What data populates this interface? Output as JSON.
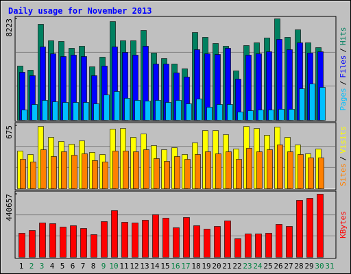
{
  "title": "Daily usage for November 2013",
  "chart_data": [
    {
      "type": "bar",
      "ylim": [
        0,
        8223
      ],
      "yticks": [
        8223
      ],
      "legend_separator": "/",
      "series": [
        {
          "name": "Hits",
          "color": "#008060",
          "values": [
            4391,
            4056,
            7778,
            6445,
            6390,
            5834,
            6000,
            4334,
            5111,
            8000,
            6445,
            6445,
            7278,
            5445,
            5000,
            4556,
            4167,
            7112,
            6723,
            6223,
            6000,
            4000,
            6056,
            6278,
            6667,
            8223,
            6723,
            7334,
            6278,
            5889,
            null
          ]
        },
        {
          "name": "Files",
          "color": "#0000ff",
          "values": [
            3890,
            3612,
            5945,
            5390,
            5167,
            5278,
            5167,
            3612,
            4390,
            5945,
            5500,
            5278,
            6000,
            4556,
            4556,
            3834,
            3500,
            5723,
            5390,
            5334,
            5834,
            3334,
            5278,
            5390,
            5556,
            6556,
            5723,
            6278,
            5445,
            5556,
            null
          ]
        },
        {
          "name": "Pages",
          "color": "#00c0ff",
          "values": [
            834,
            1278,
            1612,
            1500,
            1445,
            1445,
            1445,
            1334,
            2056,
            2334,
            1778,
            1612,
            1556,
            1612,
            1445,
            1612,
            1334,
            1723,
            1056,
            1278,
            1278,
            667,
            778,
            834,
            834,
            890,
            890,
            2557,
            2945,
            2668,
            null
          ]
        }
      ]
    },
    {
      "type": "bar",
      "ylim": [
        0,
        675
      ],
      "yticks": [
        675
      ],
      "legend_separator": "/",
      "series": [
        {
          "name": "Visits",
          "color": "#ffff00",
          "values": [
            403,
            367,
            667,
            550,
            506,
            477,
            513,
            389,
            367,
            638,
            645,
            550,
            587,
            462,
            418,
            440,
            367,
            491,
            623,
            623,
            579,
            425,
            667,
            645,
            572,
            660,
            550,
            469,
            374,
            425,
            null
          ]
        },
        {
          "name": "Sites",
          "color": "#ff8000",
          "values": [
            315,
            286,
            418,
            345,
            396,
            359,
            374,
            301,
            286,
            403,
            403,
            396,
            418,
            323,
            293,
            345,
            315,
            367,
            396,
            374,
            396,
            315,
            433,
            396,
            418,
            469,
            396,
            367,
            330,
            330,
            null
          ]
        }
      ]
    },
    {
      "type": "bar",
      "ylim": [
        0,
        440657
      ],
      "yticks": [
        440657
      ],
      "categories": [
        "1",
        "2",
        "3",
        "4",
        "5",
        "6",
        "7",
        "8",
        "9",
        "10",
        "11",
        "12",
        "13",
        "14",
        "15",
        "16",
        "17",
        "18",
        "19",
        "20",
        "21",
        "22",
        "23",
        "24",
        "25",
        "26",
        "27",
        "28",
        "29",
        "30",
        "31"
      ],
      "category_colors": [
        "#000000",
        "#008040",
        "#008040",
        "#000000",
        "#000000",
        "#000000",
        "#000000",
        "#000000",
        "#008040",
        "#008040",
        "#000000",
        "#000000",
        "#000000",
        "#000000",
        "#000000",
        "#008040",
        "#008040",
        "#000000",
        "#000000",
        "#000000",
        "#000000",
        "#000000",
        "#008040",
        "#008040",
        "#000000",
        "#000000",
        "#000000",
        "#000000",
        "#000000",
        "#008040",
        "#008040"
      ],
      "series": [
        {
          "name": "KBytes",
          "color": "#ff0000",
          "values": [
            167650,
            186800,
            239500,
            234700,
            210800,
            220300,
            201200,
            158000,
            249100,
            325700,
            244300,
            239500,
            258700,
            297000,
            273000,
            206000,
            277800,
            220300,
            196400,
            215500,
            253900,
            129300,
            162900,
            162900,
            167650,
            229900,
            215500,
            397600,
            411900,
            440657,
            null
          ]
        }
      ]
    }
  ]
}
